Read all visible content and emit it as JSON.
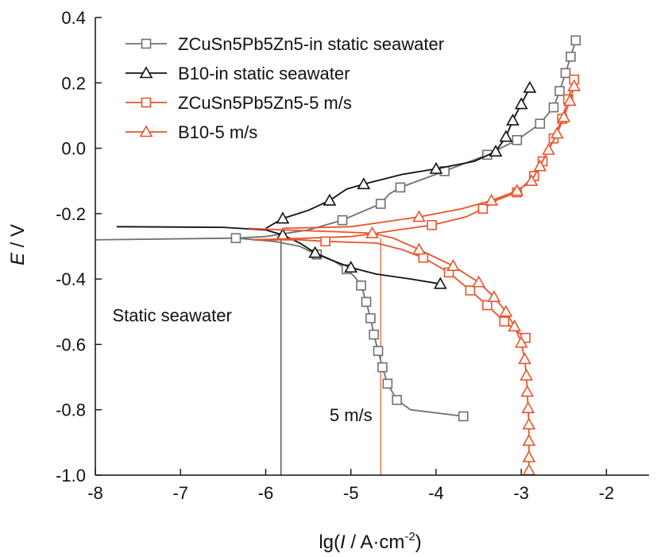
{
  "chart_data": {
    "type": "line",
    "xlabel_parts": {
      "pre": "lg(",
      "ital": "I",
      "mid": " / A·cm",
      "sup": "-2",
      "post": ")"
    },
    "ylabel_parts": {
      "ital": "E",
      "post": " / V"
    },
    "xlim": [
      -8,
      -1.5
    ],
    "ylim": [
      -1.0,
      0.4
    ],
    "xticks": [
      -8,
      -7,
      -6,
      -5,
      -4,
      -3,
      -2
    ],
    "xtick_labels": [
      "-8",
      "-7",
      "-6",
      "-5",
      "-4",
      "-3",
      "-2"
    ],
    "yticks": [
      0.4,
      0.2,
      0.0,
      -0.2,
      -0.4,
      -0.6,
      -0.8,
      -1.0
    ],
    "ytick_labels": [
      "0.4",
      "0.2",
      "0.0",
      "-0.2",
      "-0.4",
      "-0.6",
      "-0.8",
      "-1.0"
    ],
    "legend_position": "top-left",
    "grid": false,
    "series": [
      {
        "name": "ZCuSn5Pb5Zn5-in static seawater",
        "color": "#707070",
        "marker": "square",
        "points": [
          [
            -8.0,
            -0.28
          ],
          [
            -6.35,
            -0.275
          ],
          [
            -5.9,
            -0.285
          ],
          [
            -5.6,
            -0.3
          ],
          [
            -5.4,
            -0.325
          ],
          [
            -5.2,
            -0.345
          ],
          [
            -5.05,
            -0.37
          ],
          [
            -4.95,
            -0.395
          ],
          [
            -4.88,
            -0.42
          ],
          [
            -4.82,
            -0.47
          ],
          [
            -4.77,
            -0.52
          ],
          [
            -4.73,
            -0.57
          ],
          [
            -4.68,
            -0.62
          ],
          [
            -4.63,
            -0.67
          ],
          [
            -4.57,
            -0.72
          ],
          [
            -4.46,
            -0.77
          ],
          [
            -4.3,
            -0.8
          ],
          [
            -3.68,
            -0.82
          ]
        ],
        "upper": [
          [
            -6.35,
            -0.275
          ],
          [
            -6.0,
            -0.27
          ],
          [
            -5.5,
            -0.25
          ],
          [
            -5.1,
            -0.22
          ],
          [
            -4.65,
            -0.17
          ],
          [
            -4.55,
            -0.14
          ],
          [
            -4.42,
            -0.12
          ],
          [
            -3.9,
            -0.07
          ],
          [
            -3.4,
            -0.02
          ],
          [
            -3.05,
            0.025
          ],
          [
            -2.78,
            0.075
          ],
          [
            -2.62,
            0.125
          ],
          [
            -2.55,
            0.175
          ],
          [
            -2.48,
            0.23
          ],
          [
            -2.42,
            0.28
          ],
          [
            -2.36,
            0.33
          ]
        ],
        "marker_points": [
          [
            -6.35,
            -0.275
          ],
          [
            -5.4,
            -0.325
          ],
          [
            -5.05,
            -0.37
          ],
          [
            -4.88,
            -0.42
          ],
          [
            -4.82,
            -0.47
          ],
          [
            -4.77,
            -0.52
          ],
          [
            -4.73,
            -0.57
          ],
          [
            -4.68,
            -0.62
          ],
          [
            -4.63,
            -0.67
          ],
          [
            -4.57,
            -0.72
          ],
          [
            -4.46,
            -0.77
          ],
          [
            -3.68,
            -0.82
          ],
          [
            -5.1,
            -0.22
          ],
          [
            -4.65,
            -0.17
          ],
          [
            -4.42,
            -0.12
          ],
          [
            -3.9,
            -0.07
          ],
          [
            -3.4,
            -0.02
          ],
          [
            -3.05,
            0.025
          ],
          [
            -2.78,
            0.075
          ],
          [
            -2.62,
            0.125
          ],
          [
            -2.55,
            0.175
          ],
          [
            -2.48,
            0.23
          ],
          [
            -2.42,
            0.28
          ],
          [
            -2.36,
            0.33
          ]
        ]
      },
      {
        "name": "B10-in static seawater",
        "color": "#111111",
        "marker": "triangle",
        "points": [
          [
            -7.75,
            -0.24
          ],
          [
            -6.5,
            -0.242
          ],
          [
            -6.0,
            -0.25
          ],
          [
            -5.8,
            -0.265
          ],
          [
            -5.6,
            -0.29
          ],
          [
            -5.42,
            -0.32
          ],
          [
            -5.2,
            -0.345
          ],
          [
            -5.0,
            -0.365
          ],
          [
            -4.7,
            -0.385
          ],
          [
            -4.3,
            -0.4
          ],
          [
            -3.95,
            -0.415
          ]
        ],
        "upper": [
          [
            -6.0,
            -0.245
          ],
          [
            -5.8,
            -0.215
          ],
          [
            -5.5,
            -0.19
          ],
          [
            -5.25,
            -0.16
          ],
          [
            -5.05,
            -0.125
          ],
          [
            -4.85,
            -0.11
          ],
          [
            -4.4,
            -0.08
          ],
          [
            -4.0,
            -0.063
          ],
          [
            -3.55,
            -0.04
          ],
          [
            -3.3,
            -0.01
          ],
          [
            -3.18,
            0.035
          ],
          [
            -3.1,
            0.085
          ],
          [
            -3.0,
            0.135
          ],
          [
            -2.9,
            0.185
          ]
        ],
        "marker_points": [
          [
            -5.8,
            -0.265
          ],
          [
            -5.42,
            -0.32
          ],
          [
            -5.0,
            -0.365
          ],
          [
            -3.95,
            -0.415
          ],
          [
            -5.8,
            -0.215
          ],
          [
            -5.25,
            -0.16
          ],
          [
            -4.85,
            -0.11
          ],
          [
            -4.0,
            -0.063
          ],
          [
            -3.3,
            -0.01
          ],
          [
            -3.18,
            0.035
          ],
          [
            -3.1,
            0.085
          ],
          [
            -3.0,
            0.135
          ],
          [
            -2.9,
            0.185
          ]
        ]
      },
      {
        "name": "ZCuSn5Pb5Zn5-5 m/s",
        "color": "#e8542c",
        "marker": "square",
        "points": [
          [
            -6.15,
            -0.28
          ],
          [
            -5.6,
            -0.28
          ],
          [
            -5.3,
            -0.285
          ],
          [
            -4.7,
            -0.29
          ],
          [
            -4.4,
            -0.31
          ],
          [
            -4.15,
            -0.335
          ],
          [
            -3.85,
            -0.38
          ],
          [
            -3.6,
            -0.435
          ],
          [
            -3.4,
            -0.48
          ],
          [
            -3.2,
            -0.53
          ],
          [
            -3.05,
            -0.56
          ],
          [
            -2.95,
            -0.58
          ]
        ],
        "upper": [
          [
            -6.15,
            -0.28
          ],
          [
            -5.5,
            -0.275
          ],
          [
            -5.0,
            -0.27
          ],
          [
            -4.7,
            -0.26
          ],
          [
            -4.45,
            -0.25
          ],
          [
            -4.05,
            -0.235
          ],
          [
            -3.65,
            -0.21
          ],
          [
            -3.45,
            -0.185
          ],
          [
            -3.3,
            -0.16
          ],
          [
            -3.05,
            -0.135
          ],
          [
            -2.85,
            -0.085
          ],
          [
            -2.75,
            -0.04
          ],
          [
            -2.62,
            0.03
          ],
          [
            -2.52,
            0.09
          ],
          [
            -2.45,
            0.15
          ],
          [
            -2.38,
            0.21
          ]
        ],
        "marker_points": [
          [
            -5.3,
            -0.285
          ],
          [
            -4.15,
            -0.335
          ],
          [
            -3.85,
            -0.38
          ],
          [
            -3.6,
            -0.435
          ],
          [
            -3.4,
            -0.48
          ],
          [
            -3.2,
            -0.53
          ],
          [
            -2.95,
            -0.58
          ],
          [
            -4.05,
            -0.235
          ],
          [
            -3.45,
            -0.185
          ],
          [
            -3.05,
            -0.135
          ],
          [
            -2.85,
            -0.085
          ],
          [
            -2.75,
            -0.04
          ],
          [
            -2.62,
            0.03
          ],
          [
            -2.52,
            0.09
          ],
          [
            -2.45,
            0.15
          ],
          [
            -2.38,
            0.21
          ]
        ]
      },
      {
        "name": "B10-5 m/s",
        "color": "#e8542c",
        "marker": "triangle",
        "points": [
          [
            -6.2,
            -0.245
          ],
          [
            -5.8,
            -0.25
          ],
          [
            -5.2,
            -0.255
          ],
          [
            -4.75,
            -0.26
          ],
          [
            -4.5,
            -0.275
          ],
          [
            -4.2,
            -0.31
          ],
          [
            -3.8,
            -0.36
          ],
          [
            -3.5,
            -0.41
          ],
          [
            -3.32,
            -0.455
          ],
          [
            -3.18,
            -0.5
          ],
          [
            -3.08,
            -0.545
          ],
          [
            -3.0,
            -0.595
          ],
          [
            -2.96,
            -0.645
          ],
          [
            -2.94,
            -0.695
          ],
          [
            -2.93,
            -0.745
          ],
          [
            -2.92,
            -0.795
          ],
          [
            -2.91,
            -0.845
          ],
          [
            -2.91,
            -0.895
          ],
          [
            -2.91,
            -0.945
          ],
          [
            -2.91,
            -0.985
          ]
        ],
        "upper": [
          [
            -5.8,
            -0.245
          ],
          [
            -5.0,
            -0.24
          ],
          [
            -4.2,
            -0.21
          ],
          [
            -3.7,
            -0.185
          ],
          [
            -3.35,
            -0.16
          ],
          [
            -3.05,
            -0.13
          ],
          [
            -2.88,
            -0.1
          ],
          [
            -2.78,
            -0.055
          ],
          [
            -2.68,
            -0.005
          ],
          [
            -2.58,
            0.045
          ],
          [
            -2.5,
            0.095
          ],
          [
            -2.43,
            0.145
          ],
          [
            -2.38,
            0.19
          ]
        ],
        "marker_points": [
          [
            -4.75,
            -0.26
          ],
          [
            -4.2,
            -0.31
          ],
          [
            -3.8,
            -0.36
          ],
          [
            -3.5,
            -0.41
          ],
          [
            -3.32,
            -0.455
          ],
          [
            -3.18,
            -0.5
          ],
          [
            -3.08,
            -0.545
          ],
          [
            -3.0,
            -0.595
          ],
          [
            -2.96,
            -0.645
          ],
          [
            -2.94,
            -0.695
          ],
          [
            -2.93,
            -0.745
          ],
          [
            -2.92,
            -0.795
          ],
          [
            -2.91,
            -0.845
          ],
          [
            -2.91,
            -0.895
          ],
          [
            -2.91,
            -0.945
          ],
          [
            -2.91,
            -0.985
          ],
          [
            -4.2,
            -0.21
          ],
          [
            -3.35,
            -0.16
          ],
          [
            -3.05,
            -0.13
          ],
          [
            -2.88,
            -0.1
          ],
          [
            -2.78,
            -0.055
          ],
          [
            -2.68,
            -0.005
          ],
          [
            -2.58,
            0.045
          ],
          [
            -2.5,
            0.095
          ],
          [
            -2.43,
            0.145
          ],
          [
            -2.38,
            0.19
          ]
        ]
      }
    ],
    "reference_lines": [
      {
        "x": -5.82,
        "y_from": -1.0,
        "y_to": -0.27,
        "color": "#333333"
      },
      {
        "x": -4.65,
        "y_from": -1.0,
        "y_to": -0.275,
        "color": "#e8542c"
      }
    ],
    "annotations": [
      {
        "text": "Static seawater",
        "x": -7.8,
        "y": -0.53
      },
      {
        "text": "5 m/s",
        "x": -5.25,
        "y": -0.835
      }
    ]
  }
}
